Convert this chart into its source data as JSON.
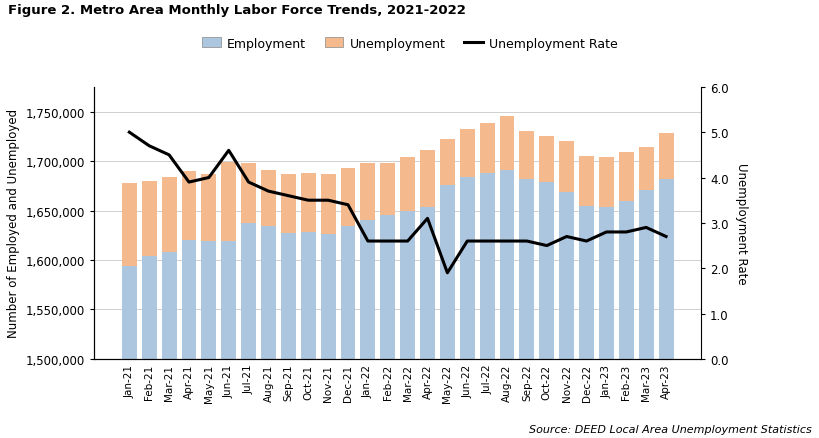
{
  "title": "Figure 2. Metro Area Monthly Labor Force Trends, 2021-2022",
  "source": "Source: DEED Local Area Unemployment Statistics",
  "ylabel_left": "Number of Employed and Unemployed",
  "ylabel_right": "Unemployment Rate",
  "bar_color_employment": "#adc6e0",
  "bar_color_unemployment": "#f5b98e",
  "line_color": "#000000",
  "ylim_left": [
    1500000,
    1775000
  ],
  "ylim_right": [
    0.0,
    6.0
  ],
  "categories": [
    "Jan-21",
    "Feb-21",
    "Mar-21",
    "Apr-21",
    "May-21",
    "Jun-21",
    "Jul-21",
    "Aug-21",
    "Sep-21",
    "Oct-21",
    "Nov-21",
    "Dec-21",
    "Jan-22",
    "Feb-22",
    "Mar-22",
    "Apr-22",
    "May-22",
    "Jun-22",
    "Jul-22",
    "Aug-22",
    "Sep-22",
    "Oct-22",
    "Nov-22",
    "Dec-22",
    "Jan-23",
    "Feb-23",
    "Mar-23",
    "Apr-23"
  ],
  "employment": [
    1594000,
    1604000,
    1608000,
    1620000,
    1619000,
    1619000,
    1637000,
    1634000,
    1627000,
    1628000,
    1626000,
    1634000,
    1640000,
    1645000,
    1650000,
    1654000,
    1676000,
    1684000,
    1688000,
    1691000,
    1682000,
    1679000,
    1669000,
    1655000,
    1654000,
    1660000,
    1671000,
    1682000
  ],
  "unemployment": [
    84000,
    76000,
    76000,
    70000,
    68000,
    80000,
    61000,
    57000,
    60000,
    60000,
    61000,
    59000,
    58000,
    53000,
    54000,
    57000,
    46000,
    48000,
    50000,
    54000,
    48000,
    46000,
    51000,
    50000,
    50000,
    49000,
    43000,
    46000
  ],
  "unemp_rate": [
    5.0,
    4.7,
    4.5,
    3.9,
    4.0,
    4.6,
    3.9,
    3.7,
    3.6,
    3.5,
    3.5,
    3.4,
    2.6,
    2.6,
    2.6,
    3.1,
    1.9,
    2.6,
    2.6,
    2.6,
    2.6,
    2.5,
    2.7,
    2.6,
    2.8,
    2.8,
    2.9,
    2.7
  ],
  "legend_labels": [
    "Employment",
    "Unemployment",
    "Unemployment Rate"
  ],
  "yticks_left": [
    1500000,
    1550000,
    1600000,
    1650000,
    1700000,
    1750000
  ],
  "yticks_right": [
    0.0,
    1.0,
    2.0,
    3.0,
    4.0,
    5.0,
    6.0
  ],
  "background_color": "#ffffff"
}
